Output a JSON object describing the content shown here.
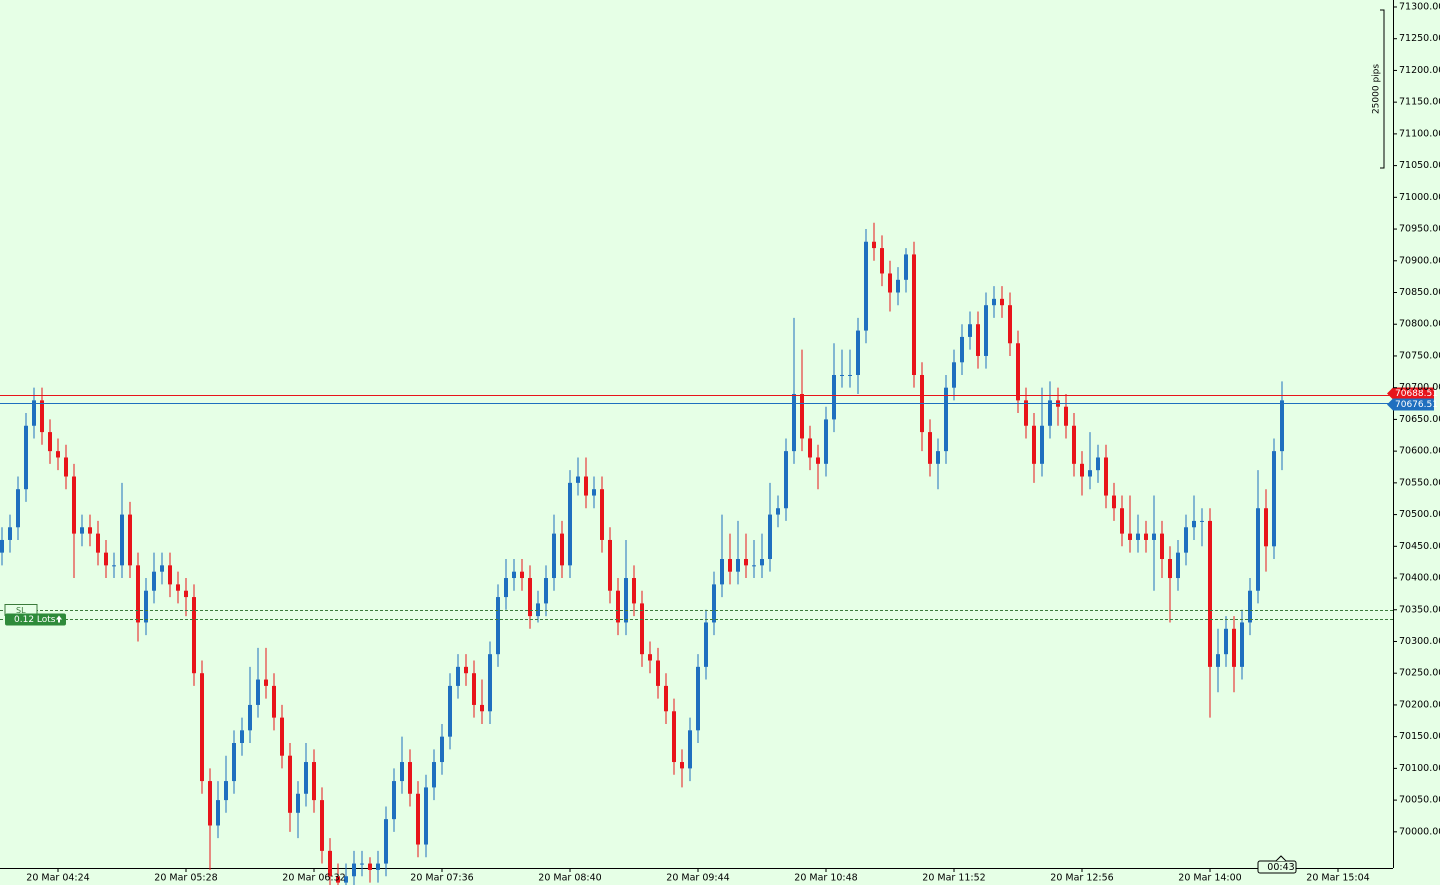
{
  "chart_data": {
    "type": "candlestick",
    "open": [
      70440,
      70460,
      70480,
      70540,
      70640,
      70680,
      70630,
      70600,
      70590,
      70560,
      70470,
      70480,
      70470,
      70440,
      70420,
      70420,
      70500,
      70420,
      70330,
      70380,
      70410,
      70420,
      70390,
      70380,
      70370,
      70250,
      70080,
      70010,
      70050,
      70080,
      70140,
      70160,
      70200,
      70240,
      70230,
      70180,
      70120,
      70030,
      70060,
      70110,
      70050,
      69970,
      69930,
      69920,
      69930,
      69950,
      69950,
      69940,
      69950,
      70020,
      70080,
      70110,
      70060,
      69980,
      70070,
      70110,
      70150,
      70230,
      70260,
      70250,
      70200,
      70190,
      70280,
      70370,
      70400,
      70410,
      70400,
      70340,
      70360,
      70400,
      70470,
      70420,
      70550,
      70560,
      70530,
      70540,
      70460,
      70380,
      70330,
      70400,
      70360,
      70280,
      70270,
      70230,
      70190,
      70110,
      70100,
      70160,
      70260,
      70330,
      70390,
      70430,
      70410,
      70430,
      70420,
      70420,
      70430,
      70500,
      70510,
      70600,
      70690,
      70620,
      70590,
      70580,
      70650,
      70720,
      70720,
      70720,
      70790,
      70930,
      70920,
      70880,
      70850,
      70870,
      70910,
      70720,
      70630,
      70580,
      70600,
      70700,
      70740,
      70780,
      70800,
      70750,
      70830,
      70840,
      70830,
      70770,
      70680,
      70640,
      70580,
      70640,
      70680,
      70670,
      70640,
      70580,
      70560,
      70570,
      70590,
      70530,
      70510,
      70470,
      70460,
      70470,
      70460,
      70470,
      70430,
      70400,
      70440,
      70480,
      70490,
      70490,
      70260,
      70280,
      70320,
      70260,
      70330,
      70380,
      70510,
      70450,
      70600
    ],
    "high": [
      70480,
      70500,
      70560,
      70660,
      70700,
      70700,
      70650,
      70620,
      70610,
      70580,
      70500,
      70500,
      70490,
      70460,
      70440,
      70550,
      70520,
      70440,
      70400,
      70440,
      70440,
      70440,
      70410,
      70400,
      70390,
      70270,
      70100,
      70080,
      70120,
      70160,
      70180,
      70260,
      70290,
      70290,
      70250,
      70200,
      70140,
      70080,
      70140,
      70130,
      70070,
      69990,
      69950,
      69950,
      69970,
      69970,
      69960,
      69970,
      70040,
      70100,
      70150,
      70130,
      70080,
      70090,
      70130,
      70170,
      70250,
      70280,
      70280,
      70270,
      70240,
      70300,
      70390,
      70430,
      70430,
      70430,
      70420,
      70380,
      70420,
      70500,
      70490,
      70570,
      70590,
      70590,
      70560,
      70560,
      70480,
      70400,
      70460,
      70420,
      70380,
      70300,
      70290,
      70250,
      70210,
      70130,
      70180,
      70280,
      70350,
      70410,
      70500,
      70470,
      70490,
      70470,
      70460,
      70470,
      70550,
      70530,
      70620,
      70810,
      70760,
      70640,
      70610,
      70670,
      70770,
      70760,
      70760,
      70810,
      70950,
      70960,
      70940,
      70900,
      70890,
      70920,
      70930,
      70740,
      70650,
      70620,
      70720,
      70760,
      70800,
      70820,
      70820,
      70850,
      70860,
      70860,
      70850,
      70790,
      70700,
      70660,
      70700,
      70710,
      70700,
      70690,
      70660,
      70600,
      70630,
      70610,
      70610,
      70550,
      70530,
      70530,
      70500,
      70490,
      70530,
      70490,
      70450,
      70460,
      70500,
      70530,
      70510,
      70510,
      70320,
      70340,
      70340,
      70350,
      70400,
      70570,
      70540,
      70620,
      70710
    ],
    "low": [
      70420,
      70440,
      70460,
      70520,
      70620,
      70610,
      70580,
      70570,
      70540,
      70400,
      70450,
      70450,
      70420,
      70400,
      70400,
      70400,
      70400,
      70300,
      70310,
      70360,
      70390,
      70370,
      70360,
      70340,
      70230,
      70060,
      69940,
      69990,
      70030,
      70060,
      70120,
      70140,
      70180,
      70210,
      70160,
      70100,
      70000,
      69990,
      70040,
      70030,
      69950,
      69910,
      69900,
      69900,
      69910,
      69930,
      69920,
      69920,
      69930,
      70000,
      70060,
      70040,
      69960,
      69960,
      70050,
      70090,
      70130,
      70210,
      70230,
      70180,
      70170,
      70170,
      70260,
      70350,
      70380,
      70380,
      70320,
      70330,
      70340,
      70380,
      70400,
      70400,
      70530,
      70510,
      70510,
      70440,
      70360,
      70310,
      70310,
      70340,
      70260,
      70250,
      70210,
      70170,
      70090,
      70070,
      70080,
      70140,
      70240,
      70310,
      70370,
      70390,
      70390,
      70400,
      70400,
      70400,
      70410,
      70480,
      70490,
      70580,
      70600,
      70570,
      70540,
      70560,
      70630,
      70700,
      70700,
      70690,
      70770,
      70900,
      70860,
      70820,
      70830,
      70850,
      70700,
      70600,
      70560,
      70540,
      70580,
      70680,
      70720,
      70760,
      70730,
      70730,
      70810,
      70810,
      70750,
      70660,
      70620,
      70550,
      70560,
      70620,
      70640,
      70620,
      70560,
      70530,
      70540,
      70550,
      70510,
      70490,
      70450,
      70440,
      70440,
      70440,
      70380,
      70400,
      70330,
      70380,
      70420,
      70460,
      70450,
      70180,
      70220,
      70260,
      70220,
      70240,
      70310,
      70360,
      70410,
      70430,
      70570
    ],
    "close": [
      70460,
      70480,
      70540,
      70640,
      70680,
      70630,
      70600,
      70590,
      70560,
      70470,
      70480,
      70470,
      70440,
      70420,
      70420,
      70500,
      70420,
      70330,
      70380,
      70410,
      70420,
      70390,
      70380,
      70370,
      70250,
      70080,
      70010,
      70050,
      70080,
      70140,
      70160,
      70200,
      70240,
      70230,
      70180,
      70120,
      70030,
      70060,
      70110,
      70050,
      69970,
      69930,
      69920,
      69930,
      69950,
      69950,
      69940,
      69950,
      70020,
      70080,
      70110,
      70060,
      69980,
      70070,
      70110,
      70150,
      70230,
      70260,
      70250,
      70200,
      70190,
      70280,
      70370,
      70400,
      70410,
      70400,
      70340,
      70360,
      70400,
      70470,
      70420,
      70550,
      70560,
      70530,
      70540,
      70460,
      70380,
      70330,
      70400,
      70360,
      70280,
      70270,
      70230,
      70190,
      70110,
      70100,
      70160,
      70260,
      70330,
      70390,
      70430,
      70410,
      70430,
      70420,
      70420,
      70430,
      70500,
      70510,
      70600,
      70690,
      70620,
      70590,
      70580,
      70650,
      70720,
      70720,
      70720,
      70790,
      70930,
      70920,
      70880,
      70850,
      70870,
      70910,
      70720,
      70630,
      70580,
      70600,
      70700,
      70740,
      70780,
      70800,
      70750,
      70830,
      70840,
      70830,
      70770,
      70680,
      70640,
      70580,
      70640,
      70680,
      70670,
      70640,
      70580,
      70560,
      70570,
      70590,
      70530,
      70510,
      70470,
      70460,
      70470,
      70460,
      70470,
      70430,
      70400,
      70440,
      70480,
      70490,
      70490,
      70260,
      70280,
      70320,
      70260,
      70330,
      70380,
      70510,
      70450,
      70600,
      70680
    ],
    "up_color": "#1f6fbf",
    "down_color": "#e8141b",
    "xlim": [
      -0.25,
      173.875
    ],
    "xticks": [
      {
        "value": 7,
        "label": "20 Mar 04:24"
      },
      {
        "value": 23,
        "label": "20 Mar 05:28"
      },
      {
        "value": 39,
        "label": "20 Mar 06:32"
      },
      {
        "value": 55,
        "label": "20 Mar 07:36"
      },
      {
        "value": 71,
        "label": "20 Mar 08:40"
      },
      {
        "value": 87,
        "label": "20 Mar 09:44"
      },
      {
        "value": 103,
        "label": "20 Mar 10:48"
      },
      {
        "value": 119,
        "label": "20 Mar 11:52"
      },
      {
        "value": 135,
        "label": "20 Mar 12:56"
      },
      {
        "value": 151,
        "label": "20 Mar 14:00"
      },
      {
        "value": 167,
        "label": "20 Mar 15:04"
      }
    ],
    "ylim": [
      69943,
      71311
    ],
    "yticks": [
      {
        "value": 70000,
        "label": "70000.00"
      },
      {
        "value": 70050,
        "label": "70050.00"
      },
      {
        "value": 70100,
        "label": "70100.00"
      },
      {
        "value": 70150,
        "label": "70150.00"
      },
      {
        "value": 70200,
        "label": "70200.00"
      },
      {
        "value": 70250,
        "label": "70250.00"
      },
      {
        "value": 70300,
        "label": "70300.00"
      },
      {
        "value": 70350,
        "label": "70350.00"
      },
      {
        "value": 70400,
        "label": "70400.00"
      },
      {
        "value": 70450,
        "label": "70450.00"
      },
      {
        "value": 70500,
        "label": "70500.00"
      },
      {
        "value": 70550,
        "label": "70550.00"
      },
      {
        "value": 70600,
        "label": "70600.00"
      },
      {
        "value": 70650,
        "label": "70650.00"
      },
      {
        "value": 70700,
        "label": "70700.00"
      },
      {
        "value": 70750,
        "label": "70750.00"
      },
      {
        "value": 70800,
        "label": "70800.00"
      },
      {
        "value": 70850,
        "label": "70850.00"
      },
      {
        "value": 70900,
        "label": "70900.00"
      },
      {
        "value": 70950,
        "label": "70950.00"
      },
      {
        "value": 71000,
        "label": "71000.00"
      },
      {
        "value": 71050,
        "label": "71050.00"
      },
      {
        "value": 71100,
        "label": "71100.00"
      },
      {
        "value": 71150,
        "label": "71150.00"
      },
      {
        "value": 71200,
        "label": "71200.00"
      },
      {
        "value": 71250,
        "label": "71250.00"
      },
      {
        "value": 71300,
        "label": "71300.00"
      }
    ],
    "price_lines": [
      {
        "value": 70688.51,
        "label": "70688.51",
        "color": "#e8141b"
      },
      {
        "value": 70676.51,
        "label": "70676.51",
        "color": "#1f6fbf"
      }
    ],
    "levels": [
      {
        "value": 70350,
        "label": "SL"
      },
      {
        "value": 70336,
        "label": "0.12 Lots"
      }
    ],
    "scale_label": "25000 pips",
    "timer": "00:43"
  }
}
